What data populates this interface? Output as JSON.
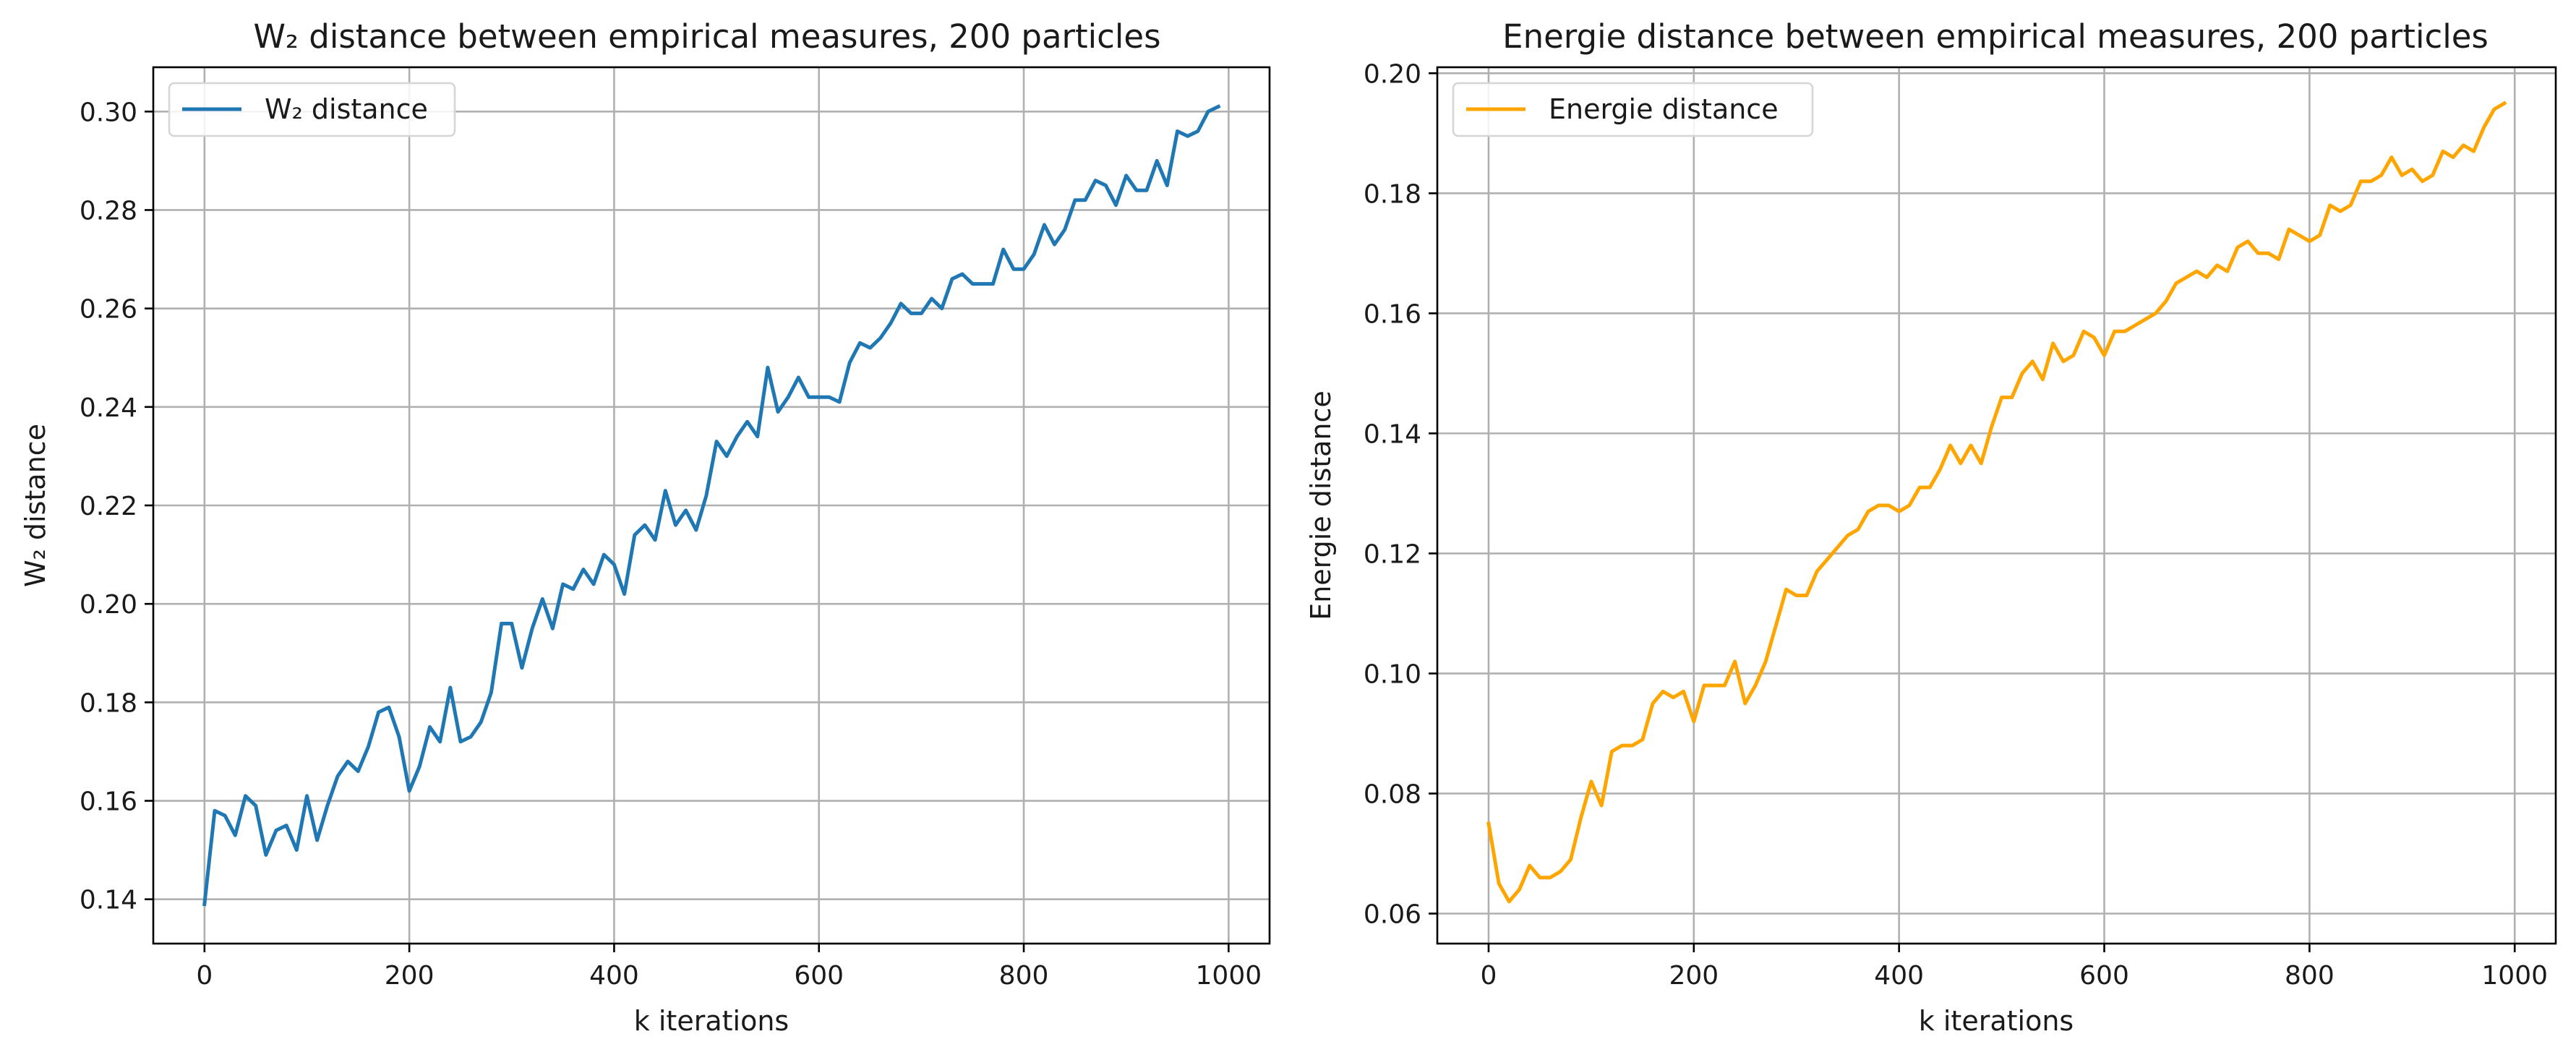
{
  "chart_data": [
    {
      "type": "line",
      "title": "W₂ distance between empirical measures, 200 particles",
      "xlabel": "k iterations",
      "ylabel": "W₂ distance",
      "xlim": [
        -50,
        1040
      ],
      "ylim": [
        0.131,
        0.309
      ],
      "xticks": [
        0,
        200,
        400,
        600,
        800,
        1000
      ],
      "xtick_labels": [
        "0",
        "200",
        "400",
        "600",
        "800",
        "1000"
      ],
      "yticks": [
        0.14,
        0.16,
        0.18,
        0.2,
        0.22,
        0.24,
        0.26,
        0.28,
        0.3
      ],
      "ytick_labels": [
        "0.14",
        "0.16",
        "0.18",
        "0.20",
        "0.22",
        "0.24",
        "0.26",
        "0.28",
        "0.30"
      ],
      "grid": true,
      "legend_position": "top-left",
      "series": [
        {
          "name": "W₂ distance",
          "color": "#1f77b4",
          "x": [
            0,
            10,
            20,
            30,
            40,
            50,
            60,
            70,
            80,
            90,
            100,
            110,
            120,
            130,
            140,
            150,
            160,
            170,
            180,
            190,
            200,
            210,
            220,
            230,
            240,
            250,
            260,
            270,
            280,
            290,
            300,
            310,
            320,
            330,
            340,
            350,
            360,
            370,
            380,
            390,
            400,
            410,
            420,
            430,
            440,
            450,
            460,
            470,
            480,
            490,
            500,
            510,
            520,
            530,
            540,
            550,
            560,
            570,
            580,
            590,
            600,
            610,
            620,
            630,
            640,
            650,
            660,
            670,
            680,
            690,
            700,
            710,
            720,
            730,
            740,
            750,
            760,
            770,
            780,
            790,
            800,
            810,
            820,
            830,
            840,
            850,
            860,
            870,
            880,
            890,
            900,
            910,
            920,
            930,
            940,
            950,
            960,
            970,
            980,
            990
          ],
          "y": [
            0.139,
            0.158,
            0.157,
            0.153,
            0.161,
            0.159,
            0.149,
            0.154,
            0.155,
            0.15,
            0.161,
            0.152,
            0.159,
            0.165,
            0.168,
            0.166,
            0.171,
            0.178,
            0.179,
            0.173,
            0.162,
            0.167,
            0.175,
            0.172,
            0.183,
            0.172,
            0.173,
            0.176,
            0.182,
            0.196,
            0.196,
            0.187,
            0.195,
            0.201,
            0.195,
            0.204,
            0.203,
            0.207,
            0.204,
            0.21,
            0.208,
            0.202,
            0.214,
            0.216,
            0.213,
            0.223,
            0.216,
            0.219,
            0.215,
            0.222,
            0.233,
            0.23,
            0.234,
            0.237,
            0.234,
            0.248,
            0.239,
            0.242,
            0.246,
            0.242,
            0.242,
            0.242,
            0.241,
            0.249,
            0.253,
            0.252,
            0.254,
            0.257,
            0.261,
            0.259,
            0.259,
            0.262,
            0.26,
            0.266,
            0.267,
            0.265,
            0.265,
            0.265,
            0.272,
            0.268,
            0.268,
            0.271,
            0.277,
            0.273,
            0.276,
            0.282,
            0.282,
            0.286,
            0.285,
            0.281,
            0.287,
            0.284,
            0.284,
            0.29,
            0.285,
            0.296,
            0.295,
            0.296,
            0.3,
            0.301
          ]
        }
      ]
    },
    {
      "type": "line",
      "title": "Energie distance between empirical measures, 200 particles",
      "xlabel": "k iterations",
      "ylabel": "Energie distance",
      "xlim": [
        -50,
        1040
      ],
      "ylim": [
        0.055,
        0.201
      ],
      "xticks": [
        0,
        200,
        400,
        600,
        800,
        1000
      ],
      "xtick_labels": [
        "0",
        "200",
        "400",
        "600",
        "800",
        "1000"
      ],
      "yticks": [
        0.06,
        0.08,
        0.1,
        0.12,
        0.14,
        0.16,
        0.18,
        0.2
      ],
      "ytick_labels": [
        "0.06",
        "0.08",
        "0.10",
        "0.12",
        "0.14",
        "0.16",
        "0.18",
        "0.20"
      ],
      "grid": true,
      "legend_position": "top-left",
      "series": [
        {
          "name": "Energie distance",
          "color": "#ffa500",
          "x": [
            0,
            10,
            20,
            30,
            40,
            50,
            60,
            70,
            80,
            90,
            100,
            110,
            120,
            130,
            140,
            150,
            160,
            170,
            180,
            190,
            200,
            210,
            220,
            230,
            240,
            250,
            260,
            270,
            280,
            290,
            300,
            310,
            320,
            330,
            340,
            350,
            360,
            370,
            380,
            390,
            400,
            410,
            420,
            430,
            440,
            450,
            460,
            470,
            480,
            490,
            500,
            510,
            520,
            530,
            540,
            550,
            560,
            570,
            580,
            590,
            600,
            610,
            620,
            630,
            640,
            650,
            660,
            670,
            680,
            690,
            700,
            710,
            720,
            730,
            740,
            750,
            760,
            770,
            780,
            790,
            800,
            810,
            820,
            830,
            840,
            850,
            860,
            870,
            880,
            890,
            900,
            910,
            920,
            930,
            940,
            950,
            960,
            970,
            980,
            990
          ],
          "y": [
            0.075,
            0.065,
            0.062,
            0.064,
            0.068,
            0.066,
            0.066,
            0.067,
            0.069,
            0.076,
            0.082,
            0.078,
            0.087,
            0.088,
            0.088,
            0.089,
            0.095,
            0.097,
            0.096,
            0.097,
            0.092,
            0.098,
            0.098,
            0.098,
            0.102,
            0.095,
            0.098,
            0.102,
            0.108,
            0.114,
            0.113,
            0.113,
            0.117,
            0.119,
            0.121,
            0.123,
            0.124,
            0.127,
            0.128,
            0.128,
            0.127,
            0.128,
            0.131,
            0.131,
            0.134,
            0.138,
            0.135,
            0.138,
            0.135,
            0.141,
            0.146,
            0.146,
            0.15,
            0.152,
            0.149,
            0.155,
            0.152,
            0.153,
            0.157,
            0.156,
            0.153,
            0.157,
            0.157,
            0.158,
            0.159,
            0.16,
            0.162,
            0.165,
            0.166,
            0.167,
            0.166,
            0.168,
            0.167,
            0.171,
            0.172,
            0.17,
            0.17,
            0.169,
            0.174,
            0.173,
            0.172,
            0.173,
            0.178,
            0.177,
            0.178,
            0.182,
            0.182,
            0.183,
            0.186,
            0.183,
            0.184,
            0.182,
            0.183,
            0.187,
            0.186,
            0.188,
            0.187,
            0.191,
            0.194,
            0.195
          ]
        }
      ]
    }
  ]
}
